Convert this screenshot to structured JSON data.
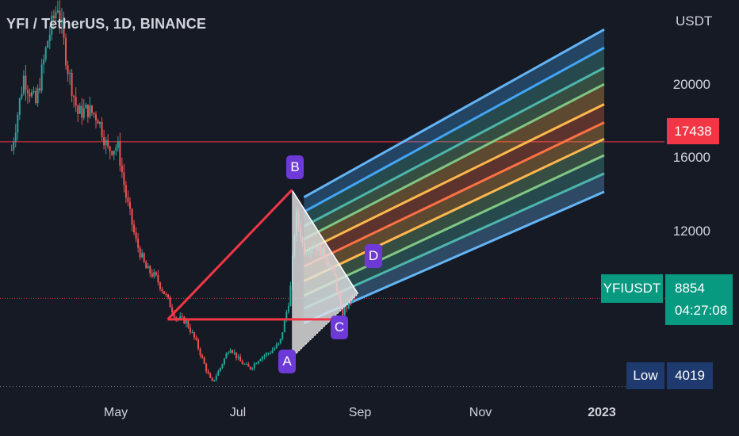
{
  "header": {
    "title": "YFI / TetherUS, 1D, BINANCE"
  },
  "price_axis": {
    "unit": "USDT"
  },
  "current_price": {
    "symbol": "YFIUSDT",
    "value": "8854",
    "countdown": "04:27:08",
    "color": "#089981"
  },
  "alert_level": {
    "value": "17438",
    "color": "#f23645"
  },
  "low_marker": {
    "label": "Low",
    "value": "4019"
  },
  "pattern_points": [
    "A",
    "B",
    "C",
    "D"
  ],
  "colors": {
    "background": "#161a25",
    "up": "#26a69a",
    "down": "#ef5350",
    "pattern": "#6d3ad8"
  },
  "chart_data": {
    "type": "candlestick",
    "symbol": "YFI / TetherUS",
    "interval": "1D",
    "exchange": "BINANCE",
    "y_ticks": [
      12000,
      16000,
      20000
    ],
    "x_ticks": [
      "May",
      "Jul",
      "Sep",
      "Nov",
      "2023"
    ],
    "ylim": [
      3000,
      24000
    ],
    "grid": false,
    "price_path": [
      {
        "date": "2022-03-10",
        "close": 17000
      },
      {
        "date": "2022-03-16",
        "close": 21000
      },
      {
        "date": "2022-03-22",
        "close": 19500
      },
      {
        "date": "2022-03-28",
        "close": 23000
      },
      {
        "date": "2022-04-02",
        "close": 25000
      },
      {
        "date": "2022-04-07",
        "close": 21500
      },
      {
        "date": "2022-04-12",
        "close": 19000
      },
      {
        "date": "2022-04-17",
        "close": 19200
      },
      {
        "date": "2022-04-22",
        "close": 18800
      },
      {
        "date": "2022-04-27",
        "close": 17000
      },
      {
        "date": "2022-05-02",
        "close": 17200
      },
      {
        "date": "2022-05-06",
        "close": 14500
      },
      {
        "date": "2022-05-11",
        "close": 12000
      },
      {
        "date": "2022-05-16",
        "close": 10500
      },
      {
        "date": "2022-05-21",
        "close": 10000
      },
      {
        "date": "2022-05-26",
        "close": 9000
      },
      {
        "date": "2022-05-31",
        "close": 7800
      },
      {
        "date": "2022-06-05",
        "close": 7600
      },
      {
        "date": "2022-06-10",
        "close": 6500
      },
      {
        "date": "2022-06-15",
        "close": 5000
      },
      {
        "date": "2022-06-18",
        "close": 4200
      },
      {
        "date": "2022-06-22",
        "close": 5000
      },
      {
        "date": "2022-06-27",
        "close": 6200
      },
      {
        "date": "2022-07-02",
        "close": 5400
      },
      {
        "date": "2022-07-07",
        "close": 5000
      },
      {
        "date": "2022-07-12",
        "close": 5600
      },
      {
        "date": "2022-07-17",
        "close": 5900
      },
      {
        "date": "2022-07-22",
        "close": 6400
      },
      {
        "date": "2022-07-27",
        "close": 9000
      },
      {
        "date": "2022-07-30",
        "close": 13500
      },
      {
        "date": "2022-08-03",
        "close": 11500
      },
      {
        "date": "2022-08-08",
        "close": 11800
      },
      {
        "date": "2022-08-13",
        "close": 11300
      },
      {
        "date": "2022-08-18",
        "close": 10200
      },
      {
        "date": "2022-08-22",
        "close": 8000
      },
      {
        "date": "2022-08-27",
        "close": 8900
      },
      {
        "date": "2022-08-29",
        "close": 8854
      }
    ],
    "pattern": {
      "A": {
        "date": "2022-07-28",
        "price": 5600
      },
      "B": {
        "date": "2022-07-28",
        "price": 14800
      },
      "C": {
        "date": "2022-08-23",
        "price": 7700
      },
      "D": {
        "date": "2022-08-30",
        "price": 9100
      },
      "pivot": {
        "date": "2022-05-27",
        "price": 7700
      }
    },
    "channel": {
      "start_date": "2022-08-03",
      "end_date": "2022-12-31",
      "bands": [
        {
          "start": 14400,
          "end": 23600,
          "color": "#64b5f6"
        },
        {
          "start": 13600,
          "end": 22600,
          "color": "#42a5f5"
        },
        {
          "start": 12800,
          "end": 21500,
          "color": "#4db6ac"
        },
        {
          "start": 12100,
          "end": 20600,
          "color": "#81c784"
        },
        {
          "start": 11400,
          "end": 19500,
          "color": "#ffb74d"
        },
        {
          "start": 10600,
          "end": 18500,
          "color": "#ff7043"
        },
        {
          "start": 9800,
          "end": 17600,
          "color": "#ffb74d"
        },
        {
          "start": 9000,
          "end": 16700,
          "color": "#81c784"
        },
        {
          "start": 8300,
          "end": 15700,
          "color": "#4db6ac"
        },
        {
          "start": 7500,
          "end": 14700,
          "color": "#64b5f6"
        }
      ]
    }
  }
}
